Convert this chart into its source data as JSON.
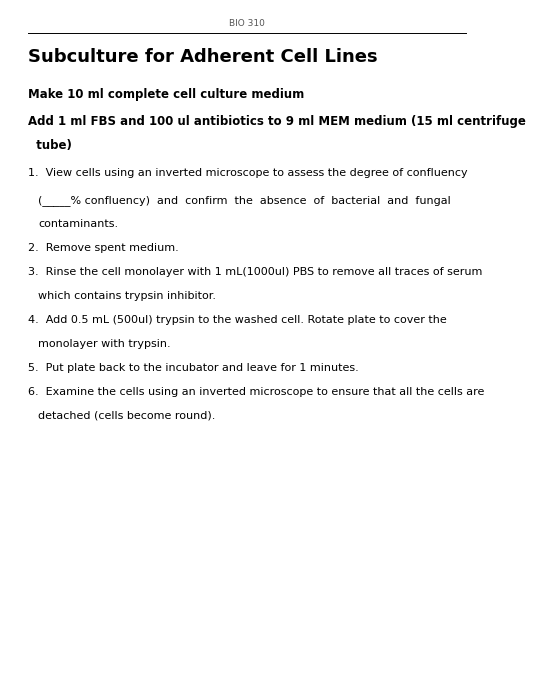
{
  "bg_color": "#ffffff",
  "header_label": "BIO 310",
  "title": "Subculture for Adherent Cell Lines",
  "bold_line1": "Make 10 ml complete cell culture medium",
  "bold_line2": "Add 1 ml FBS and 100 ul antibiotics to 9 ml MEM medium (15 ml centrifuge",
  "bold_line2b": "  tube)",
  "header_fontsize": 6.5,
  "title_fontsize": 13,
  "bold_fontsize": 8.5,
  "step_fontsize": 8.0,
  "line_color": "#000000",
  "text_color": "#000000",
  "bg_color_fig": "#ffffff"
}
